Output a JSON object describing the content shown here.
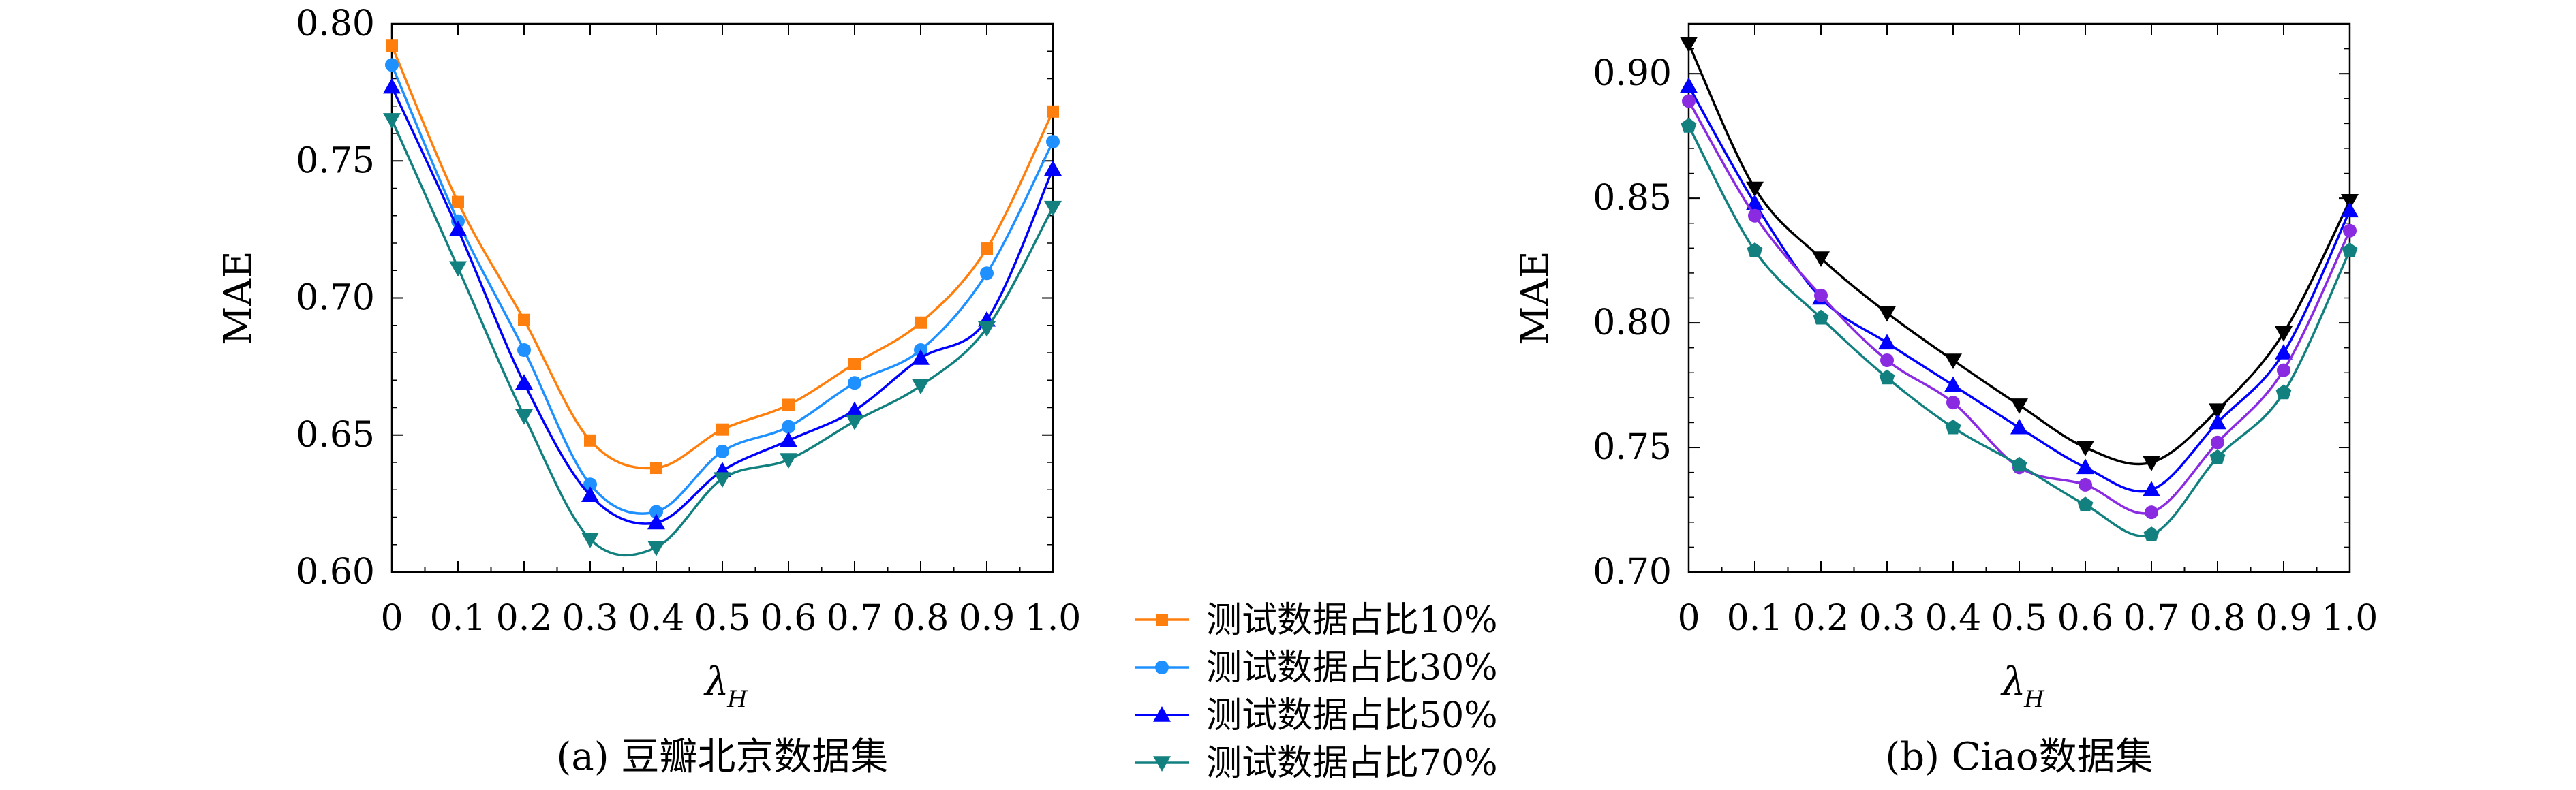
{
  "chart_data": [
    {
      "type": "line",
      "caption": "(a) 豆瓣北京数据集",
      "xlabel": "λ",
      "xlabel_sub": "H",
      "ylabel": "MAE",
      "x": [
        0,
        0.1,
        0.2,
        0.3,
        0.4,
        0.5,
        0.6,
        0.7,
        0.8,
        0.9,
        1.0
      ],
      "x_tick_labels": [
        "0",
        "0.1",
        "0.2",
        "0.3",
        "0.4",
        "0.5",
        "0.6",
        "0.7",
        "0.8",
        "0.9",
        "1.0"
      ],
      "xlim": [
        0,
        1.0
      ],
      "ylim": [
        0.6,
        0.8
      ],
      "y_ticks": [
        0.6,
        0.65,
        0.7,
        0.75,
        0.8
      ],
      "y_tick_labels": [
        "0.60",
        "0.65",
        "0.70",
        "0.75",
        "0.80"
      ],
      "grid": false,
      "series": [
        {
          "name": "测试数据占比10%",
          "color": "#ff7f0e",
          "marker": "square",
          "values": [
            0.792,
            0.735,
            0.692,
            0.648,
            0.638,
            0.652,
            0.661,
            0.676,
            0.691,
            0.718,
            0.768
          ]
        },
        {
          "name": "测试数据占比30%",
          "color": "#1e90ff",
          "marker": "circle",
          "values": [
            0.785,
            0.728,
            0.681,
            0.632,
            0.622,
            0.644,
            0.653,
            0.669,
            0.681,
            0.709,
            0.757
          ]
        },
        {
          "name": "测试数据占比50%",
          "color": "#0000ff",
          "marker": "triangle-up",
          "values": [
            0.777,
            0.725,
            0.669,
            0.628,
            0.618,
            0.637,
            0.648,
            0.659,
            0.678,
            0.692,
            0.747
          ]
        },
        {
          "name": "测试数据占比70%",
          "color": "#138080",
          "marker": "triangle-down",
          "values": [
            0.765,
            0.711,
            0.657,
            0.612,
            0.609,
            0.634,
            0.641,
            0.655,
            0.668,
            0.689,
            0.733
          ]
        }
      ]
    },
    {
      "type": "line",
      "caption": "(b) Ciao数据集",
      "xlabel": "λ",
      "xlabel_sub": "H",
      "ylabel": "MAE",
      "x": [
        0,
        0.1,
        0.2,
        0.3,
        0.4,
        0.5,
        0.6,
        0.7,
        0.8,
        0.9,
        1.0
      ],
      "x_tick_labels": [
        "0",
        "0.1",
        "0.2",
        "0.3",
        "0.4",
        "0.5",
        "0.6",
        "0.7",
        "0.8",
        "0.9",
        "1.0"
      ],
      "xlim": [
        0,
        1.0
      ],
      "ylim": [
        0.7,
        0.92
      ],
      "y_ticks": [
        0.7,
        0.75,
        0.8,
        0.85,
        0.9
      ],
      "y_tick_labels": [
        "0.70",
        "0.75",
        "0.80",
        "0.85",
        "0.90"
      ],
      "grid": false,
      "series": [
        {
          "color": "#000000",
          "marker": "triangle-down",
          "values": [
            0.912,
            0.854,
            0.826,
            0.804,
            0.785,
            0.767,
            0.75,
            0.744,
            0.765,
            0.796,
            0.849
          ]
        },
        {
          "color": "#0000ff",
          "marker": "triangle-up",
          "values": [
            0.895,
            0.848,
            0.81,
            0.792,
            0.775,
            0.758,
            0.742,
            0.733,
            0.76,
            0.788,
            0.845
          ]
        },
        {
          "color": "#8a2be2",
          "marker": "circle",
          "values": [
            0.889,
            0.843,
            0.811,
            0.785,
            0.768,
            0.742,
            0.735,
            0.724,
            0.752,
            0.781,
            0.837
          ]
        },
        {
          "color": "#138080",
          "marker": "pentagon",
          "values": [
            0.879,
            0.829,
            0.802,
            0.778,
            0.758,
            0.743,
            0.727,
            0.715,
            0.746,
            0.772,
            0.829
          ]
        }
      ]
    }
  ],
  "legend": {
    "placement": "between-panels",
    "entries": [
      {
        "label": "测试数据占比10%",
        "color": "#ff7f0e",
        "marker": "square"
      },
      {
        "label": "测试数据占比30%",
        "color": "#1e90ff",
        "marker": "circle"
      },
      {
        "label": "测试数据占比50%",
        "color": "#0000ff",
        "marker": "triangle-up"
      },
      {
        "label": "测试数据占比70%",
        "color": "#138080",
        "marker": "triangle-down"
      }
    ]
  }
}
